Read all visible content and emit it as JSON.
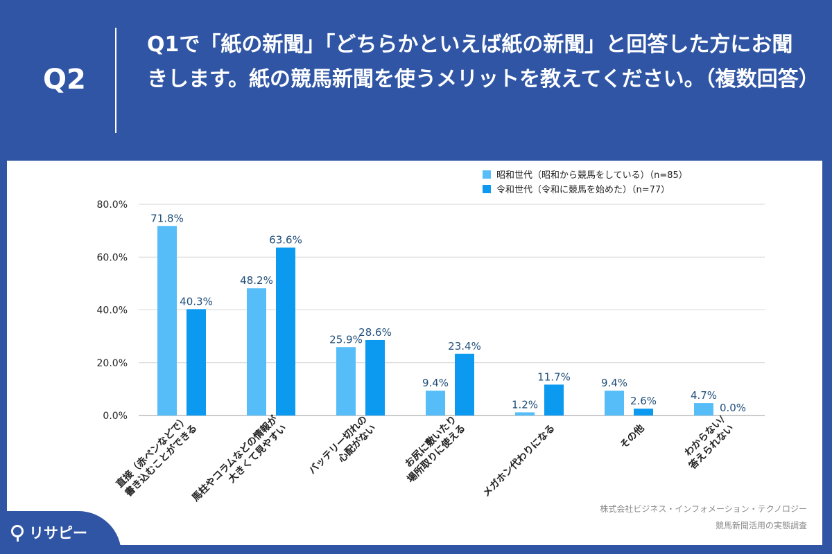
{
  "header": {
    "q_number": "Q2",
    "question": "Q1で「紙の新聞」「どちらかといえば紙の新聞」と回答した方にお聞きします。紙の競馬新聞を使うメリットを教えてください。（複数回答）"
  },
  "chart_data": {
    "type": "bar",
    "categories": [
      [
        "直接（赤ペンなどで）",
        "書き込むことができる"
      ],
      [
        "馬柱やコラムなどの情報が",
        "大きくて見やすい"
      ],
      [
        "バッテリー切れの",
        "心配がない"
      ],
      [
        "お尻に敷いたり",
        "場所取りに使える"
      ],
      [
        "メガホン代わりになる"
      ],
      [
        "その他"
      ],
      [
        "わからない/",
        "答えられない"
      ]
    ],
    "series": [
      {
        "name": "昭和世代（昭和から競馬をしている）（n=85）",
        "values": [
          71.8,
          48.2,
          25.9,
          9.4,
          1.2,
          9.4,
          4.7
        ],
        "color": "#56bdf8"
      },
      {
        "name": "令和世代（令和に競馬を始めた）（n=77）",
        "values": [
          40.3,
          63.6,
          28.6,
          23.4,
          11.7,
          2.6,
          0.0
        ],
        "color": "#0b9af0"
      }
    ],
    "yticks": [
      "0.0%",
      "20.0%",
      "40.0%",
      "60.0%",
      "80.0%"
    ],
    "ylim": [
      0,
      80
    ],
    "value_suffix": "%",
    "grid": true,
    "legend": "top-right",
    "label_color": "#1f4e79"
  },
  "source": {
    "line1": "株式会社ビジネス・インフォメーション・テクノロジー",
    "line2": "競馬新聞活用の実態調査"
  },
  "brand": {
    "name": "リサピー"
  }
}
